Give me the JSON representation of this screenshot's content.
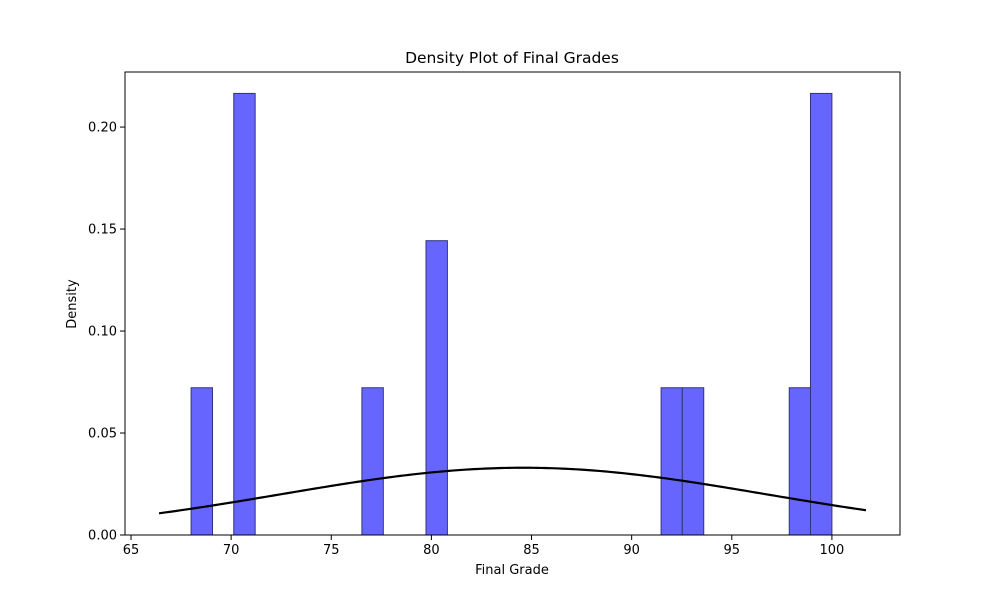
{
  "chart_data": {
    "type": "bar",
    "title": "Density Plot of Final Grades",
    "xlabel": "Final Grade",
    "ylabel": "Density",
    "xlim": [
      64.7,
      103.4
    ],
    "ylim": [
      0,
      0.227
    ],
    "xticks": [
      65,
      70,
      75,
      80,
      85,
      90,
      95,
      100
    ],
    "yticks": [
      0.0,
      0.05,
      0.1,
      0.15,
      0.2
    ],
    "ytick_labels": [
      "0.00",
      "0.05",
      "0.10",
      "0.15",
      "0.20"
    ],
    "grid": false,
    "bars": [
      {
        "x0": 68.0,
        "x1": 69.07,
        "density": 0.0722
      },
      {
        "x0": 70.13,
        "x1": 71.2,
        "density": 0.2165
      },
      {
        "x0": 76.53,
        "x1": 77.6,
        "density": 0.0722
      },
      {
        "x0": 79.73,
        "x1": 80.8,
        "density": 0.1443
      },
      {
        "x0": 91.47,
        "x1": 92.53,
        "density": 0.0722
      },
      {
        "x0": 92.53,
        "x1": 93.6,
        "density": 0.0722
      },
      {
        "x0": 97.87,
        "x1": 98.93,
        "density": 0.0722
      },
      {
        "x0": 98.93,
        "x1": 100.0,
        "density": 0.2165
      }
    ],
    "bar_color": "#6666ff",
    "bar_edge_color": "#33337f",
    "curve": {
      "type": "normal-pdf",
      "mean": 84.6,
      "std": 12.1,
      "x_range": [
        66.4,
        101.7
      ],
      "color": "#000000"
    }
  }
}
